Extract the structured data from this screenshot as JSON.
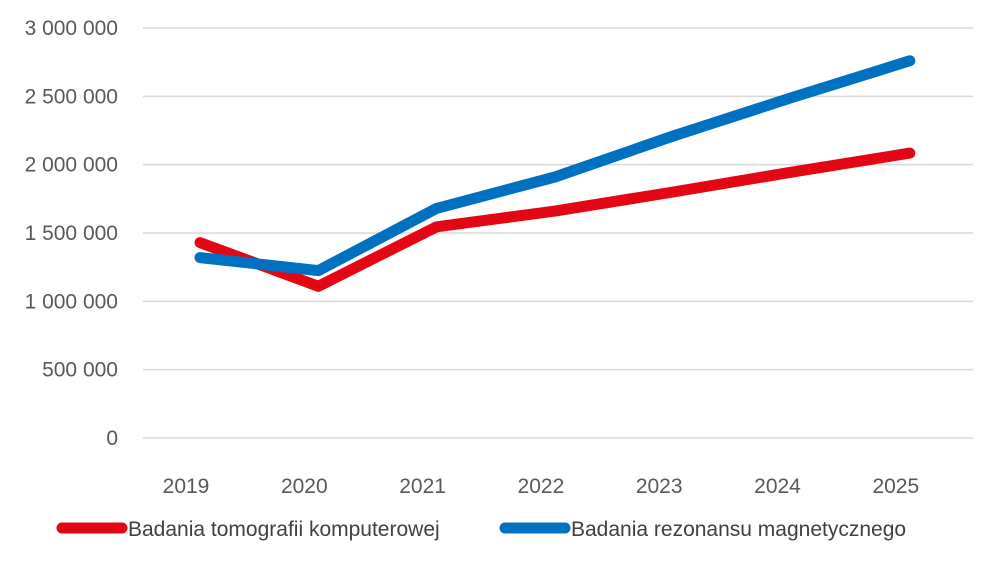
{
  "chart_data": {
    "type": "line",
    "title": "",
    "xlabel": "",
    "ylabel": "",
    "categories": [
      "2019",
      "2020",
      "2021",
      "2022",
      "2023",
      "2024",
      "2025"
    ],
    "x_tick_labels": [
      "2019",
      "2020",
      "2021",
      "2022",
      "2023",
      "2024",
      "2025"
    ],
    "y_tick_labels": [
      "0",
      "500 000",
      "1 000 000",
      "1 500 000",
      "2 000 000",
      "2 500 000",
      "3 000 000"
    ],
    "ylim": [
      0,
      3000000
    ],
    "y_ticks": [
      0,
      500000,
      1000000,
      1500000,
      2000000,
      2500000,
      3000000
    ],
    "grid": true,
    "legend_position": "bottom",
    "series": [
      {
        "name": "Badania tomografii komputerowej",
        "color": "#E30613",
        "values": [
          1430000,
          1110000,
          1545000,
          1660000,
          1800000,
          1945000,
          2085000
        ]
      },
      {
        "name": "Badania rezonansu magnetycznego",
        "color": "#0070C0",
        "values": [
          1320000,
          1225000,
          1680000,
          1910000,
          2210000,
          2490000,
          2760000
        ]
      }
    ]
  }
}
